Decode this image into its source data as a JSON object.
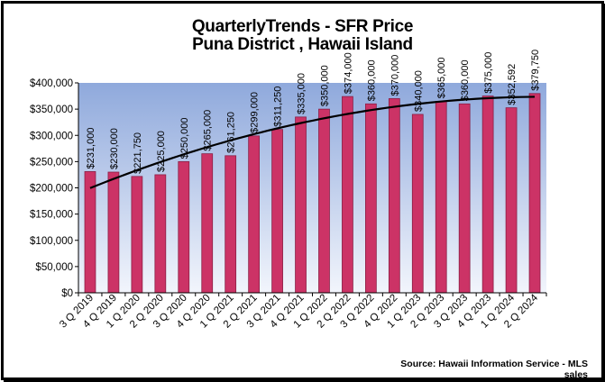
{
  "chart_data": {
    "type": "bar",
    "title": "QuarterlyTrends - SFR Price",
    "subtitle": "Puna District , Hawaii Island",
    "xlabel": "",
    "ylabel": "",
    "ylim": [
      0,
      400000
    ],
    "yticks": [
      0,
      50000,
      100000,
      150000,
      200000,
      250000,
      300000,
      350000,
      400000
    ],
    "ytick_labels": [
      "$0",
      "$50,000",
      "$100,000",
      "$150,000",
      "$200,000",
      "$250,000",
      "$300,000",
      "$350,000",
      "$400,000"
    ],
    "categories": [
      "3 Q 2019",
      "4 Q 2019",
      "1 Q 2020",
      "2 Q 2020",
      "3 Q 2020",
      "4 Q 2020",
      "1 Q 2021",
      "2 Q 2021",
      "3 Q 2021",
      "4 Q 2021",
      "1 Q 2022",
      "2 Q 2022",
      "3 Q 2022",
      "4 Q 2022",
      "1 Q 2023",
      "2 Q 2023",
      "3 Q 2023",
      "4 Q 2023",
      "1 Q 2024",
      "2 Q 2024"
    ],
    "values": [
      231000,
      230000,
      221750,
      225000,
      250000,
      265000,
      261250,
      299000,
      311250,
      335000,
      350000,
      374000,
      360000,
      370000,
      340000,
      365000,
      360000,
      375000,
      352592,
      379750
    ],
    "data_labels": [
      "$231,000",
      "$230,000",
      "$221,750",
      "$225,000",
      "$250,000",
      "$265,000",
      "$261,250",
      "$299,000",
      "$311,250",
      "$335,000",
      "$350,000",
      "$374,000",
      "$360,000",
      "$370,000",
      "$340,000",
      "$365,000",
      "$360,000",
      "$375,000",
      "$352,592",
      "$379,750"
    ],
    "trendline": "polynomial",
    "grid": false,
    "legend": "none"
  },
  "source": "Source:  Hawaii Information Service - MLS sales",
  "colors": {
    "bar": "#cc3366",
    "bar_edge": "#8a1f45",
    "plot_top": "#8fa9dc",
    "plot_bottom": "#f2f5fc",
    "trend": "#000000"
  }
}
